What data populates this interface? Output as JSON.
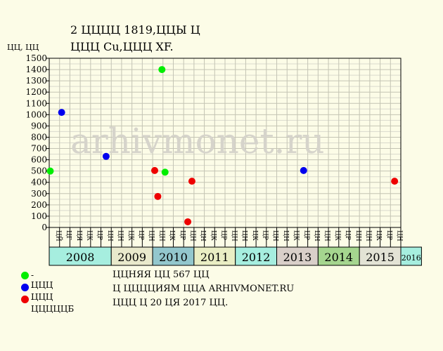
{
  "header": {
    "title_line1": "2 ЦЦЦЦ 1819,ЦЦЫ Ц",
    "title_line2": "ЦЦЦ Cu,ЦЦЦ XF."
  },
  "watermark": "arhivmonet.ru",
  "notes": [
    "ЦЦНЯЯ ЦЦ 567 ЦЦ",
    "Ц ЦЦЦЦИЯМ ЦЦА ARHIVMONET.RU",
    "ЦЦЦ Ц 20 ЦЯ 2017 ЦЦ."
  ],
  "legend": [
    {
      "label": "- ЦЦЦ",
      "color": "#00ee00"
    },
    {
      "label": "- ЦЦЦ",
      "color": "#0000ee"
    },
    {
      "label": "- ЦЦЦЦЦБ",
      "color": "#ee0000"
    }
  ],
  "chart_data": {
    "type": "scatter",
    "title": "2 ЦЦЦЦ 1819,ЦЦЫ Ц ЦЦЦ Cu,ЦЦЦ XF.",
    "ylabel": "ЦЦ, ЦЦ",
    "ylim": [
      0,
      1500
    ],
    "yticks": [
      0,
      100,
      200,
      300,
      400,
      500,
      600,
      700,
      800,
      900,
      1000,
      1100,
      1200,
      1300,
      1400,
      1500
    ],
    "grid": true,
    "months": [
      "ЦЙ",
      "ЦГ",
      "ЦЯ",
      "ЦК",
      "ЦР",
      "ЦН",
      "ЦН",
      "ЦК",
      "ЦР",
      "ЦН",
      "ЦН",
      "ЦК",
      "ЦР",
      "ЦН",
      "ЦН",
      "ЦК",
      "ЦР",
      "ЦН",
      "ЦН",
      "ЦК",
      "ЦР",
      "ЦН",
      "ЦН",
      "ЦК",
      "ЦР",
      "ЦН",
      "ЦН",
      "ЦК",
      "ЦР",
      "ЦН",
      "ЦН",
      "ЦК",
      "ЦР",
      "ЦН"
    ],
    "years": [
      {
        "label": "2008",
        "months": 6,
        "color": "#a6eedf"
      },
      {
        "label": "2009",
        "months": 4,
        "color": "#e9e9cc"
      },
      {
        "label": "2010",
        "months": 4,
        "color": "#93c7cd"
      },
      {
        "label": "2011",
        "months": 4,
        "color": "#eaeec4"
      },
      {
        "label": "2012",
        "months": 4,
        "color": "#a6eedf"
      },
      {
        "label": "2013",
        "months": 4,
        "color": "#d9cfc9"
      },
      {
        "label": "2014",
        "months": 4,
        "color": "#a5d58f"
      },
      {
        "label": "2015",
        "months": 4,
        "color": "#e3e3d5"
      },
      {
        "label": "2016",
        "months": 2,
        "color": "#a6eedf"
      }
    ],
    "series": [
      {
        "color": "#00ee00",
        "points": [
          {
            "x": 0.1,
            "y": 500
          },
          {
            "x": 10.9,
            "y": 1400
          },
          {
            "x": 11.2,
            "y": 490
          }
        ]
      },
      {
        "color": "#0000ee",
        "points": [
          {
            "x": 1.2,
            "y": 1020
          },
          {
            "x": 5.5,
            "y": 630
          },
          {
            "x": 24.6,
            "y": 505
          }
        ]
      },
      {
        "color": "#ee0000",
        "points": [
          {
            "x": 10.2,
            "y": 505
          },
          {
            "x": 10.5,
            "y": 275
          },
          {
            "x": 13.4,
            "y": 50
          },
          {
            "x": 13.8,
            "y": 410
          },
          {
            "x": 33.4,
            "y": 410
          }
        ]
      }
    ]
  }
}
